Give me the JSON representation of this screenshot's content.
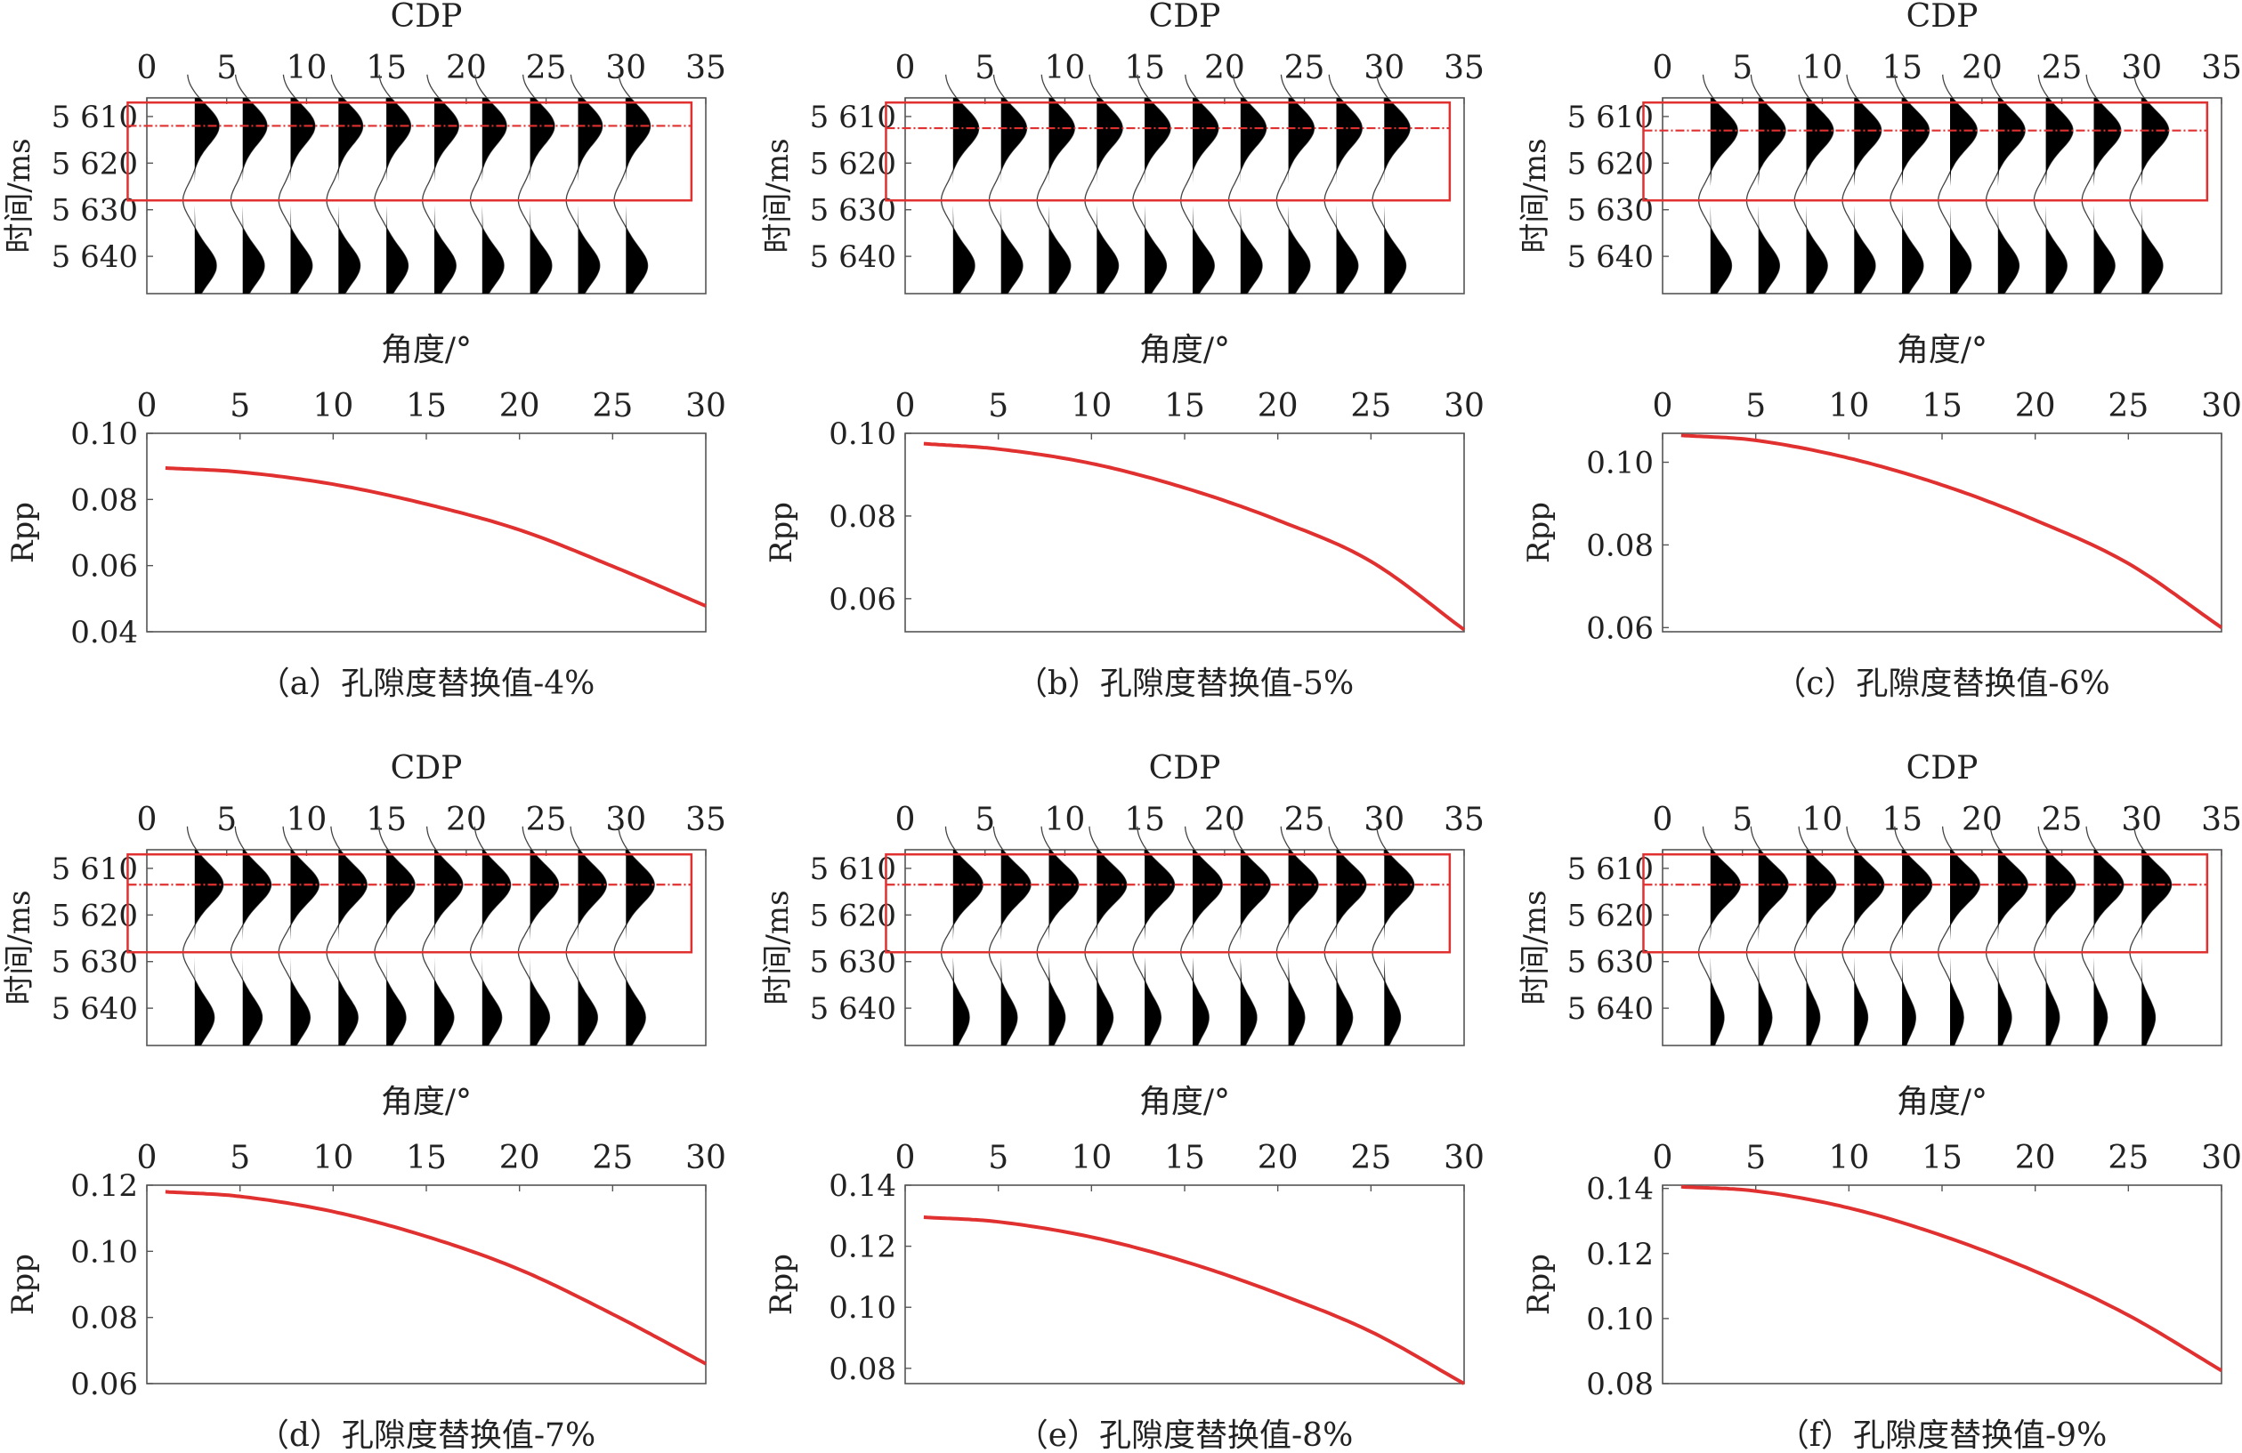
{
  "figure": {
    "seismic_xlabel": "CDP",
    "seismic_ylabel": "时间/ms",
    "rpp_xlabel": "角度/°",
    "rpp_ylabel": "Rpp",
    "line_color": "#e03030",
    "wiggle_color": "#000000"
  },
  "chart_data": [
    {
      "type": "line",
      "caption": "（a）孔隙度替换值-4%",
      "seismic": {
        "xlim": [
          0,
          35
        ],
        "xticks": [
          0,
          5,
          10,
          15,
          20,
          25,
          30,
          35
        ],
        "ylim": [
          5648,
          5606
        ],
        "yticks": [
          5610,
          5620,
          5630,
          5640
        ],
        "ytick_labels": [
          "5 610",
          "5 620",
          "5 630",
          "5 640"
        ],
        "box_time": [
          5607,
          5628
        ],
        "marker_time": 5612,
        "trace_cdp": [
          3,
          6,
          9,
          12,
          15,
          18,
          21,
          24,
          27,
          30
        ],
        "top_amplitude": 0.9,
        "bottom_amplitude": 0.8
      },
      "rpp": {
        "xlim": [
          0,
          30
        ],
        "xticks": [
          0,
          5,
          10,
          15,
          20,
          25,
          30
        ],
        "ylim": [
          0.04,
          0.1
        ],
        "yticks": [
          0.04,
          0.06,
          0.08,
          0.1
        ],
        "ytick_labels": [
          "0.04",
          "0.06",
          "0.08",
          "0.10"
        ],
        "x": [
          1,
          5,
          10,
          15,
          20,
          25,
          30
        ],
        "y": [
          0.0895,
          0.0883,
          0.0846,
          0.0786,
          0.0708,
          0.0598,
          0.0478
        ]
      }
    },
    {
      "type": "line",
      "caption": "（b）孔隙度替换值-5%",
      "seismic": {
        "xlim": [
          0,
          35
        ],
        "xticks": [
          0,
          5,
          10,
          15,
          20,
          25,
          30,
          35
        ],
        "ylim": [
          5648,
          5606
        ],
        "yticks": [
          5610,
          5620,
          5630,
          5640
        ],
        "ytick_labels": [
          "5 610",
          "5 620",
          "5 630",
          "5 640"
        ],
        "box_time": [
          5607,
          5628
        ],
        "marker_time": 5612.5,
        "trace_cdp": [
          3,
          6,
          9,
          12,
          15,
          18,
          21,
          24,
          27,
          30
        ],
        "top_amplitude": 0.95,
        "bottom_amplitude": 0.8
      },
      "rpp": {
        "xlim": [
          0,
          30
        ],
        "xticks": [
          0,
          5,
          10,
          15,
          20,
          25,
          30
        ],
        "ylim": [
          0.052,
          0.1
        ],
        "yticks": [
          0.06,
          0.08,
          0.1
        ],
        "ytick_labels": [
          "0.06",
          "0.08",
          "0.10"
        ],
        "x": [
          1,
          5,
          10,
          15,
          20,
          25,
          30
        ],
        "y": [
          0.0975,
          0.0962,
          0.0927,
          0.0868,
          0.079,
          0.069,
          0.0525
        ]
      }
    },
    {
      "type": "line",
      "caption": "（c）孔隙度替换值-6%",
      "seismic": {
        "xlim": [
          0,
          35
        ],
        "xticks": [
          0,
          5,
          10,
          15,
          20,
          25,
          30,
          35
        ],
        "ylim": [
          5648,
          5606
        ],
        "yticks": [
          5610,
          5620,
          5630,
          5640
        ],
        "ytick_labels": [
          "5 610",
          "5 620",
          "5 630",
          "5 640"
        ],
        "box_time": [
          5607,
          5628
        ],
        "marker_time": 5613,
        "trace_cdp": [
          3,
          6,
          9,
          12,
          15,
          18,
          21,
          24,
          27,
          30
        ],
        "top_amplitude": 1.0,
        "bottom_amplitude": 0.78
      },
      "rpp": {
        "xlim": [
          0,
          30
        ],
        "xticks": [
          0,
          5,
          10,
          15,
          20,
          25,
          30
        ],
        "ylim": [
          0.059,
          0.107
        ],
        "yticks": [
          0.06,
          0.08,
          0.1
        ],
        "ytick_labels": [
          "0.06",
          "0.08",
          "0.10"
        ],
        "x": [
          1,
          5,
          10,
          15,
          20,
          25,
          30
        ],
        "y": [
          0.1065,
          0.1053,
          0.101,
          0.0945,
          0.086,
          0.0755,
          0.06
        ]
      }
    },
    {
      "type": "line",
      "caption": "（d）孔隙度替换值-7%",
      "seismic": {
        "xlim": [
          0,
          35
        ],
        "xticks": [
          0,
          5,
          10,
          15,
          20,
          25,
          30,
          35
        ],
        "ylim": [
          5648,
          5606
        ],
        "yticks": [
          5610,
          5620,
          5630,
          5640
        ],
        "ytick_labels": [
          "5 610",
          "5 620",
          "5 630",
          "5 640"
        ],
        "box_time": [
          5607,
          5628
        ],
        "marker_time": 5613.5,
        "trace_cdp": [
          3,
          6,
          9,
          12,
          15,
          18,
          21,
          24,
          27,
          30
        ],
        "top_amplitude": 1.05,
        "bottom_amplitude": 0.72
      },
      "rpp": {
        "xlim": [
          0,
          30
        ],
        "xticks": [
          0,
          5,
          10,
          15,
          20,
          25,
          30
        ],
        "ylim": [
          0.06,
          0.12
        ],
        "yticks": [
          0.06,
          0.08,
          0.1,
          0.12
        ],
        "ytick_labels": [
          "0.06",
          "0.08",
          "0.10",
          "0.12"
        ],
        "x": [
          1,
          5,
          10,
          15,
          20,
          25,
          30
        ],
        "y": [
          0.118,
          0.1166,
          0.112,
          0.1045,
          0.0945,
          0.081,
          0.066
        ]
      }
    },
    {
      "type": "line",
      "caption": "（e）孔隙度替换值-8%",
      "seismic": {
        "xlim": [
          0,
          35
        ],
        "xticks": [
          0,
          5,
          10,
          15,
          20,
          25,
          30,
          35
        ],
        "ylim": [
          5648,
          5606
        ],
        "yticks": [
          5610,
          5620,
          5630,
          5640
        ],
        "ytick_labels": [
          "5 610",
          "5 620",
          "5 630",
          "5 640"
        ],
        "box_time": [
          5607,
          5628
        ],
        "marker_time": 5613.5,
        "trace_cdp": [
          3,
          6,
          9,
          12,
          15,
          18,
          21,
          24,
          27,
          30
        ],
        "top_amplitude": 1.1,
        "bottom_amplitude": 0.6
      },
      "rpp": {
        "xlim": [
          0,
          30
        ],
        "xticks": [
          0,
          5,
          10,
          15,
          20,
          25,
          30
        ],
        "ylim": [
          0.075,
          0.14
        ],
        "yticks": [
          0.08,
          0.1,
          0.12,
          0.14
        ],
        "ytick_labels": [
          "0.08",
          "0.10",
          "0.12",
          "0.14"
        ],
        "x": [
          1,
          5,
          10,
          15,
          20,
          25,
          30
        ],
        "y": [
          0.1295,
          0.128,
          0.123,
          0.115,
          0.1045,
          0.092,
          0.075
        ]
      }
    },
    {
      "type": "line",
      "caption": "（f）孔隙度替换值-9%",
      "seismic": {
        "xlim": [
          0,
          35
        ],
        "xticks": [
          0,
          5,
          10,
          15,
          20,
          25,
          30,
          35
        ],
        "ylim": [
          5648,
          5606
        ],
        "yticks": [
          5610,
          5620,
          5630,
          5640
        ],
        "ytick_labels": [
          "5 610",
          "5 620",
          "5 630",
          "5 640"
        ],
        "box_time": [
          5607,
          5628
        ],
        "marker_time": 5613.5,
        "trace_cdp": [
          3,
          6,
          9,
          12,
          15,
          18,
          21,
          24,
          27,
          30
        ],
        "top_amplitude": 1.1,
        "bottom_amplitude": 0.5
      },
      "rpp": {
        "xlim": [
          0,
          30
        ],
        "xticks": [
          0,
          5,
          10,
          15,
          20,
          25,
          30
        ],
        "ylim": [
          0.08,
          0.141
        ],
        "yticks": [
          0.08,
          0.1,
          0.12,
          0.14
        ],
        "ytick_labels": [
          "0.08",
          "0.10",
          "0.12",
          "0.14"
        ],
        "x": [
          1,
          5,
          10,
          15,
          20,
          25,
          30
        ],
        "y": [
          0.1405,
          0.1392,
          0.134,
          0.1255,
          0.1145,
          0.101,
          0.084
        ]
      }
    }
  ]
}
